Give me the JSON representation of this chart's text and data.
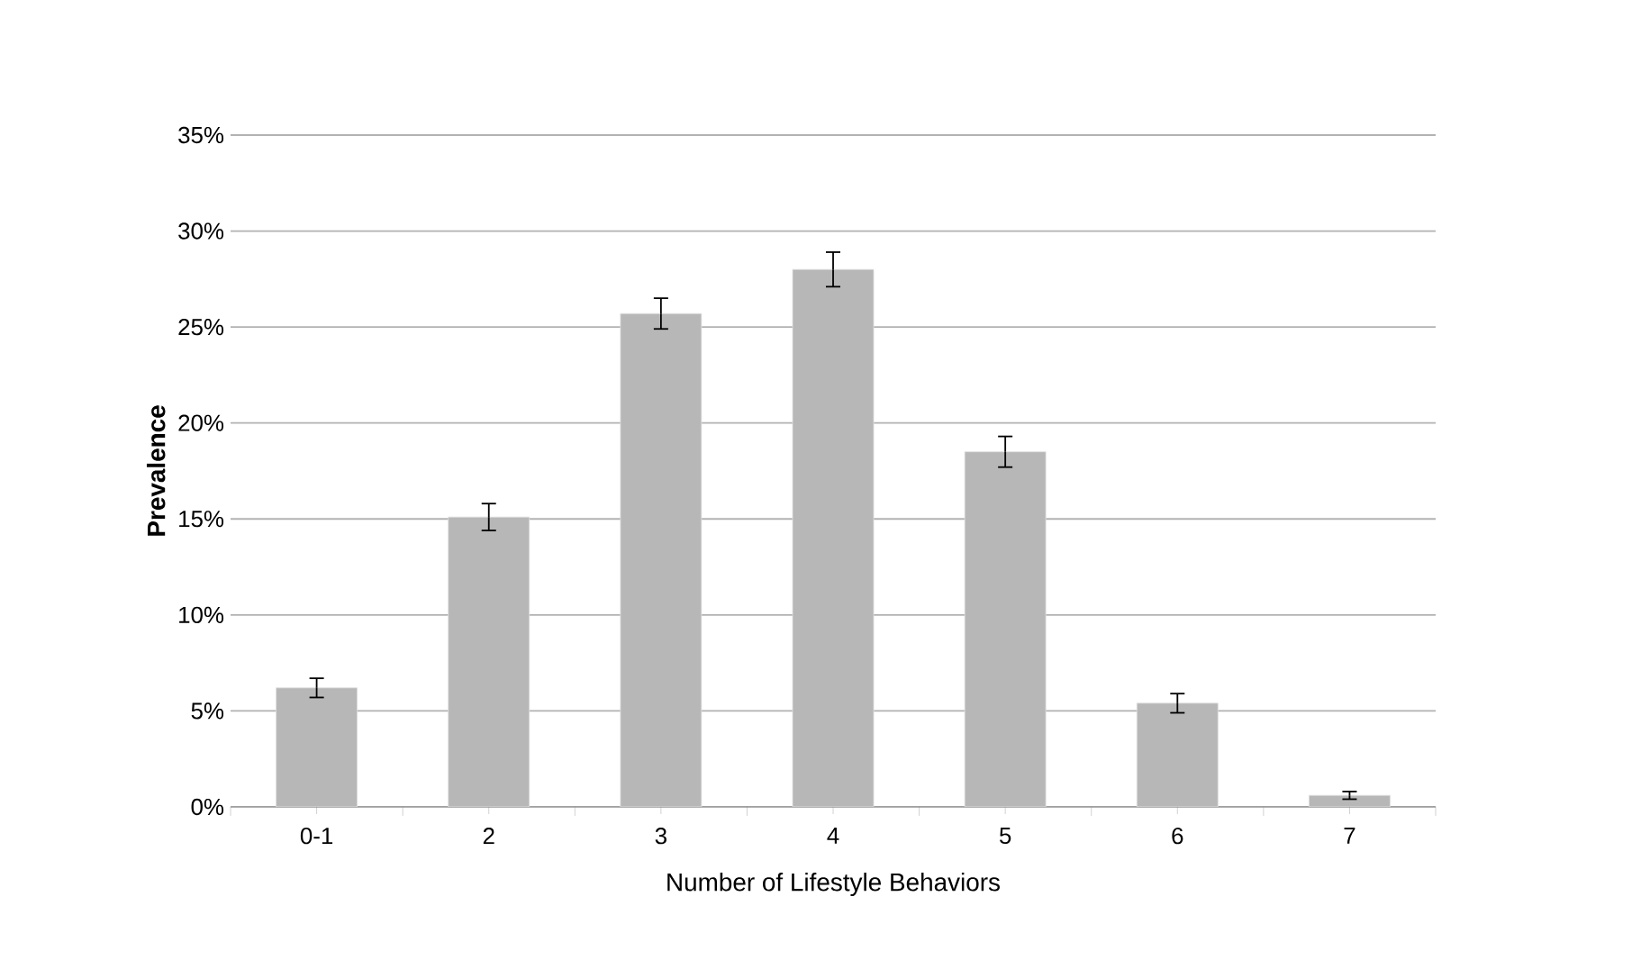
{
  "chart_data": {
    "type": "bar",
    "xlabel": "Number of Lifestyle Behaviors",
    "ylabel": "**Prevalence**",
    "categories": [
      "0-1",
      "2",
      "3",
      "4",
      "5",
      "6",
      "7"
    ],
    "values": [
      6.2,
      15.1,
      25.7,
      28.0,
      18.5,
      5.4,
      0.6
    ],
    "errors": [
      0.5,
      0.7,
      0.8,
      0.9,
      0.8,
      0.5,
      0.2
    ],
    "color": "#b7b7b7",
    "ylim": [
      0,
      35
    ],
    "yticks": [
      {
        "value": 0,
        "label": "0%"
      },
      {
        "value": 5,
        "label": "5%"
      },
      {
        "value": 10,
        "label": "10%"
      },
      {
        "value": 15,
        "label": "15%"
      },
      {
        "value": 20,
        "label": "20%"
      },
      {
        "value": 25,
        "label": "25%"
      },
      {
        "value": 30,
        "label": "30%"
      },
      {
        "value": 35,
        "label": "35%"
      }
    ],
    "grid": "y"
  }
}
